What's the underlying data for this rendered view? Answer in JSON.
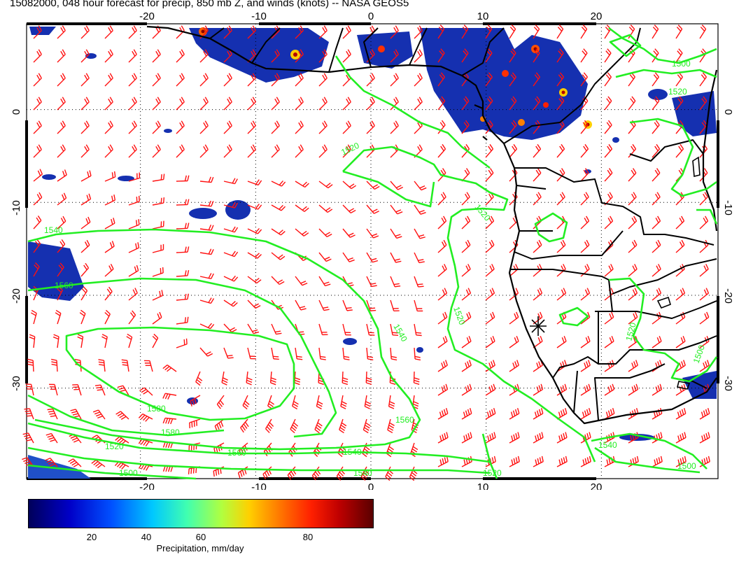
{
  "title": "15082000, 048 hour forecast for precip, 850 mb Z, and winds (knots) -- NASA GEOS5",
  "lon_ticks": [
    "-20",
    "-10",
    "0",
    "10",
    "20"
  ],
  "lat_ticks": [
    "0",
    "-10",
    "-20",
    "-30"
  ],
  "contour_labels": [
    "1520",
    "1520",
    "1540",
    "1560",
    "1580",
    "1540",
    "1520",
    "1560",
    "1580",
    "1540",
    "1520",
    "1560",
    "1540",
    "1520",
    "1500",
    "1500",
    "1520",
    "1540",
    "1500",
    "1500",
    "1520"
  ],
  "colorbar": {
    "ticks": [
      "20",
      "40",
      "60",
      "80"
    ],
    "label": "Precipitation, mm/day"
  },
  "colors": {
    "contour": "#22ee22",
    "wind": "#ff1010",
    "coast": "#000000",
    "precip_low": "#00008b",
    "precip_high": "#7a0000"
  },
  "map_extent": {
    "lon": [
      -30,
      30
    ],
    "lat": [
      -39,
      10
    ]
  }
}
